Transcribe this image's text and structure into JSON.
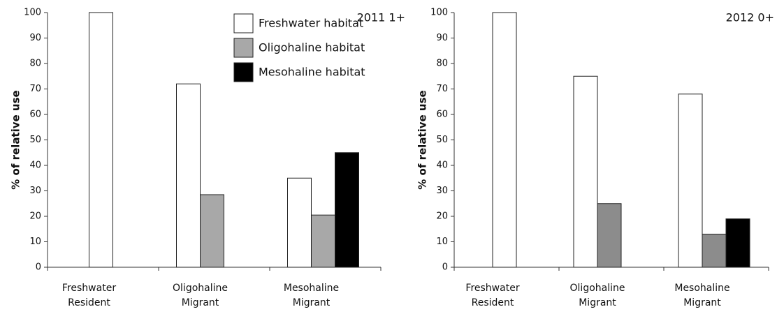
{
  "chart_data": [
    {
      "type": "bar",
      "annotation": "2011 1+",
      "y_label": "% of relative use",
      "categories": [
        "Freshwater Resident",
        "Oligohaline Migrant",
        "Mesohaline Migrant"
      ],
      "series": [
        {
          "name": "Freshwater habitat",
          "color": "#ffffff",
          "values": [
            100,
            72,
            35
          ]
        },
        {
          "name": "Oligohaline habitat",
          "color": "#a8a8a8",
          "values": [
            0,
            28.5,
            20.5
          ]
        },
        {
          "name": "Mesohaline habitat",
          "color": "#000000",
          "values": [
            0,
            0,
            45
          ]
        }
      ],
      "ylim": [
        0,
        100
      ],
      "yticks": [
        0,
        10,
        20,
        30,
        40,
        50,
        60,
        70,
        80,
        90,
        100
      ],
      "legend": "upper right"
    },
    {
      "type": "bar",
      "annotation": "2012 0+",
      "y_label": "% of relative use",
      "categories": [
        "Freshwater Resident",
        "Oligohaline Migrant",
        "Mesohaline Migrant"
      ],
      "series": [
        {
          "name": "Freshwater habitat",
          "color": "#ffffff",
          "values": [
            100,
            75,
            68
          ]
        },
        {
          "name": "Oligohaline habitat",
          "color": "#8c8c8c",
          "values": [
            0,
            25,
            13
          ]
        },
        {
          "name": "Mesohaline habitat",
          "color": "#000000",
          "values": [
            0,
            0,
            19
          ]
        }
      ],
      "ylim": [
        0,
        100
      ],
      "yticks": [
        0,
        10,
        20,
        30,
        40,
        50,
        60,
        70,
        80,
        90,
        100
      ]
    }
  ]
}
